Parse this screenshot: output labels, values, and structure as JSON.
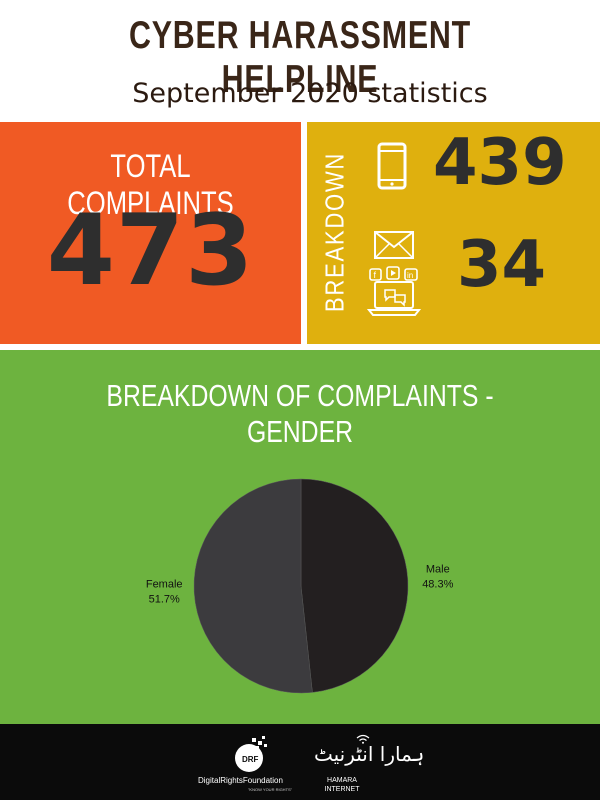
{
  "header": {
    "title": "CYBER HARASSMENT HELPLINE",
    "subtitle": "September 2020 statistics"
  },
  "total": {
    "label": "TOTAL COMPLAINTS",
    "value": "473"
  },
  "breakdown": {
    "label": "BREAKDOWN",
    "items": [
      {
        "icon": "mobile-phone-icon",
        "value": "439"
      },
      {
        "icon": "email-social-media-icon",
        "value": "34"
      }
    ]
  },
  "gender_section": {
    "title": "BREAKDOWN OF COMPLAINTS - GENDER"
  },
  "chart_data": {
    "type": "pie",
    "title": "BREAKDOWN OF COMPLAINTS - GENDER",
    "slices": [
      {
        "label": "Male",
        "value": 48.3,
        "display": "48.3%",
        "color": "#231f20"
      },
      {
        "label": "Female",
        "value": 51.7,
        "display": "51.7%",
        "color": "#3c3b3e"
      }
    ]
  },
  "footer": {
    "drf_text": "DigitalRightsFoundation",
    "drf_tagline": "\"KNOW YOUR RIGHTS\"",
    "drf_logo": "DRF",
    "hamara_urdu": "ہمارا انٹرنیٹ",
    "hamara_text": "HAMARA INTERNET"
  },
  "colors": {
    "orange": "#f05a24",
    "yellow": "#dfb00e",
    "green": "#6db33f",
    "title_brown": "#3a2618",
    "footer_black": "#0b0b0b"
  }
}
